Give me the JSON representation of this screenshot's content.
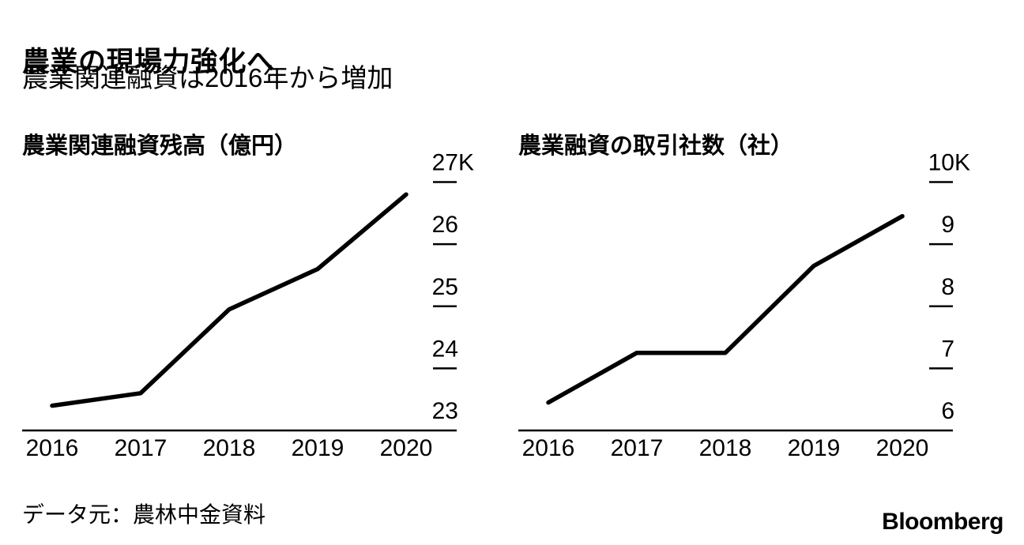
{
  "page": {
    "background": "#ffffff",
    "line_color": "#000000",
    "text_color": "#000000"
  },
  "header": {
    "title": "農業の現場力強化へ",
    "subtitle": "農業関連融資は2016年から増加"
  },
  "footer": {
    "source": "データ元：農林中金資料",
    "brand": "Bloomberg"
  },
  "chart_data": [
    {
      "type": "line",
      "title": "農業関連融資残高（億円）",
      "xlabel": "",
      "ylabel": "億円",
      "x": [
        "2016",
        "2017",
        "2018",
        "2019",
        "2020"
      ],
      "values": [
        23400,
        23600,
        24950,
        25600,
        26800
      ],
      "ylim": [
        23000,
        27000
      ],
      "grid": false,
      "legend": false,
      "axis_labels_side": "right",
      "y_ticks": [
        {
          "value": 27000,
          "label": "27",
          "suffix": "K"
        },
        {
          "value": 26000,
          "label": "26",
          "suffix": ""
        },
        {
          "value": 25000,
          "label": "25",
          "suffix": ""
        },
        {
          "value": 24000,
          "label": "24",
          "suffix": ""
        },
        {
          "value": 23000,
          "label": "23",
          "suffix": ""
        }
      ]
    },
    {
      "type": "line",
      "title": "農業融資の取引社数（社）",
      "xlabel": "",
      "ylabel": "社",
      "x": [
        "2016",
        "2017",
        "2018",
        "2019",
        "2020"
      ],
      "values": [
        6450,
        7250,
        7250,
        8650,
        9450
      ],
      "ylim": [
        6000,
        10000
      ],
      "grid": false,
      "legend": false,
      "axis_labels_side": "right",
      "y_ticks": [
        {
          "value": 10000,
          "label": "10",
          "suffix": "K"
        },
        {
          "value": 9000,
          "label": "9",
          "suffix": ""
        },
        {
          "value": 8000,
          "label": "8",
          "suffix": ""
        },
        {
          "value": 7000,
          "label": "7",
          "suffix": ""
        },
        {
          "value": 6000,
          "label": "6",
          "suffix": ""
        }
      ]
    }
  ]
}
